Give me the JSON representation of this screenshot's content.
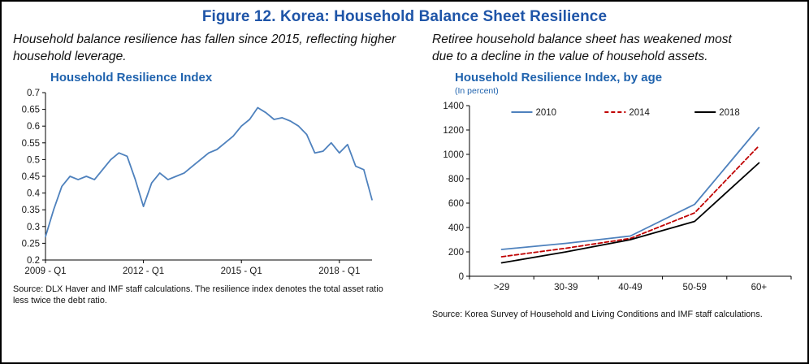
{
  "figure": {
    "title": "Figure 12. Korea: Household Balance Sheet Resilience"
  },
  "colors": {
    "figure_title": "#1F55A8",
    "chart_title": "#2063AE",
    "axis": "#000000",
    "line_blue": "#4E81BD",
    "line_red": "#C00000",
    "line_black": "#000000"
  },
  "left_panel": {
    "caption": "Household balance resilience has fallen since 2015, reflecting higher household leverage.",
    "chart_title": "Household Resilience Index",
    "source": "Source: DLX Haver and IMF staff calculations. The resilience index denotes the total asset ratio less twice the debt ratio."
  },
  "right_panel": {
    "caption": "Retiree household balance sheet has weakened most due to a decline in the value of household assets.",
    "chart_title": "Household Resilience Index, by age",
    "chart_subtitle": "(In percent)",
    "source": "Source: Korea Survey of Household and Living Conditions and IMF staff calculations."
  },
  "chart_data": [
    {
      "type": "line",
      "title": "Household Resilience Index",
      "x_mode": "index",
      "x_start": "2009 - Q1",
      "x_frequency": "quarterly",
      "x_tick_indices": [
        0,
        12,
        24,
        36
      ],
      "x_tick_labels": [
        "2009 - Q1",
        "2012 - Q1",
        "2015 - Q1",
        "2018 - Q1"
      ],
      "ylim": [
        0.2,
        0.7
      ],
      "y_tick_values": [
        0.2,
        0.25,
        0.3,
        0.35,
        0.4,
        0.45,
        0.5,
        0.55,
        0.6,
        0.65,
        0.7
      ],
      "y_tick_labels": [
        "0.2",
        "0.25",
        "0.3",
        "0.35",
        "0.4",
        "0.45",
        "0.5",
        "0.55",
        "0.6",
        "0.65",
        "0.7"
      ],
      "grid": false,
      "legend": {
        "show": false
      },
      "series": [
        {
          "name": "Resilience index",
          "color": "#4E81BD",
          "dash": "solid",
          "values": [
            0.27,
            0.35,
            0.42,
            0.45,
            0.44,
            0.45,
            0.44,
            0.47,
            0.5,
            0.52,
            0.51,
            0.44,
            0.36,
            0.43,
            0.46,
            0.44,
            0.45,
            0.46,
            0.48,
            0.5,
            0.52,
            0.53,
            0.55,
            0.57,
            0.6,
            0.62,
            0.655,
            0.64,
            0.62,
            0.625,
            0.615,
            0.6,
            0.575,
            0.52,
            0.525,
            0.55,
            0.52,
            0.545,
            0.48,
            0.47,
            0.38
          ]
        }
      ]
    },
    {
      "type": "line",
      "title": "Household Resilience Index, by age",
      "subtitle": "(In percent)",
      "x_mode": "band",
      "categories": [
        ">29",
        "30-39",
        "40-49",
        "50-59",
        "60+"
      ],
      "ylim": [
        0,
        1400
      ],
      "y_tick_values": [
        0,
        200,
        400,
        600,
        800,
        1000,
        1200,
        1400
      ],
      "y_tick_labels": [
        "0",
        "200",
        "400",
        "600",
        "800",
        "1000",
        "1200",
        "1400"
      ],
      "grid": false,
      "legend": {
        "show": true,
        "position": "top-inside"
      },
      "series": [
        {
          "name": "2010",
          "color": "#4E81BD",
          "dash": "solid",
          "values": [
            220,
            270,
            330,
            590,
            1220
          ]
        },
        {
          "name": "2014",
          "color": "#C00000",
          "dash": "dashed",
          "values": [
            160,
            230,
            310,
            520,
            1070
          ]
        },
        {
          "name": "2018",
          "color": "#000000",
          "dash": "solid",
          "values": [
            110,
            200,
            300,
            450,
            930
          ]
        }
      ]
    }
  ]
}
